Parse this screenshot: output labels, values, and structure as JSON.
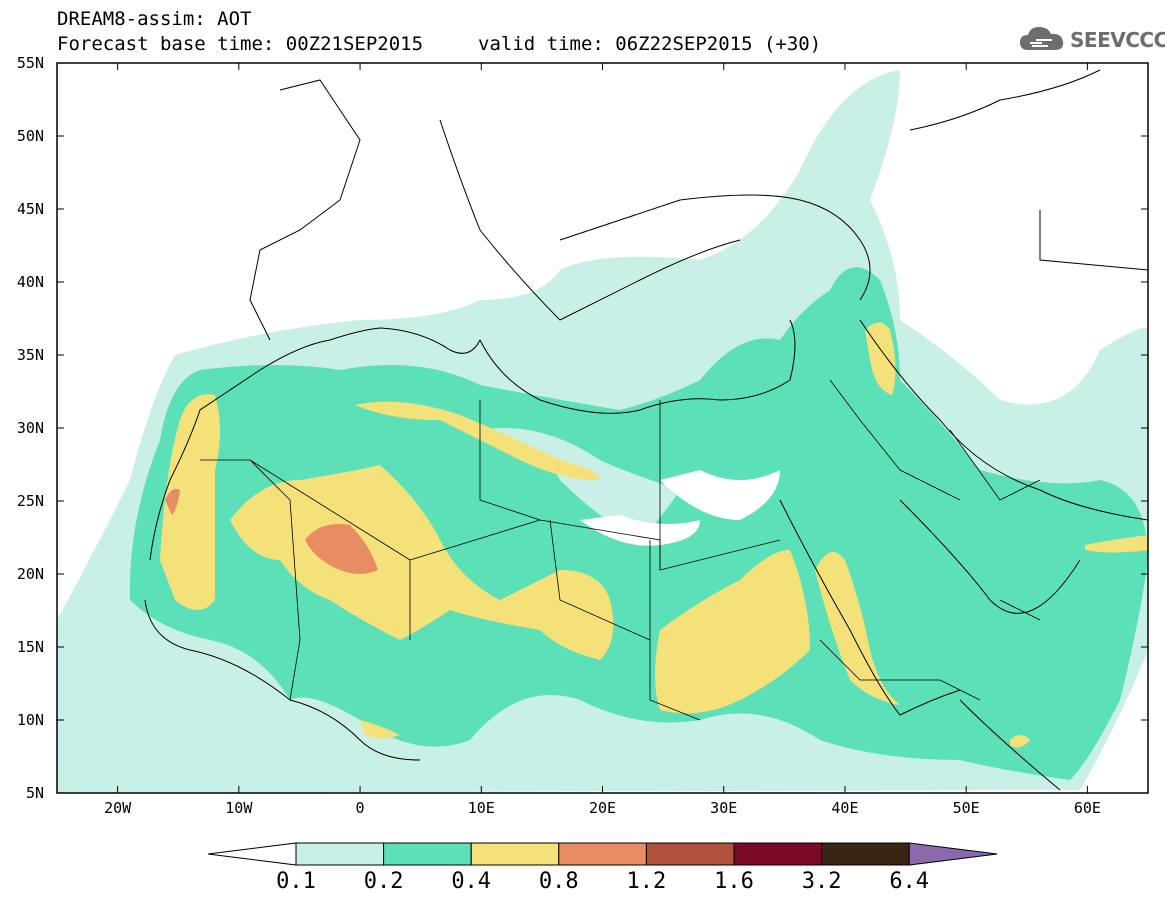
{
  "header": {
    "title_line1": "DREAM8-assim: AOT",
    "base_time": "Forecast base time: 00Z21SEP2015",
    "valid_time": "valid time: 06Z22SEP2015 (+30)",
    "logo_text": "SEEVCCC",
    "logo_icon": "cloud-icon"
  },
  "map": {
    "lat_ticks": [
      "55N",
      "50N",
      "45N",
      "40N",
      "35N",
      "30N",
      "25N",
      "20N",
      "15N",
      "10N",
      "5N"
    ],
    "lon_ticks": [
      "20W",
      "10W",
      "0",
      "10E",
      "20E",
      "30E",
      "40E",
      "50E",
      "60E"
    ],
    "lon_range": [
      -25,
      65
    ],
    "lat_range": [
      5,
      55
    ]
  },
  "colorbar": {
    "labels": [
      "0.1",
      "0.2",
      "0.4",
      "0.8",
      "1.2",
      "1.6",
      "3.2",
      "6.4"
    ],
    "colors": [
      "#ffffff",
      "#c8f0e6",
      "#5ce0b8",
      "#f5e17a",
      "#e88c64",
      "#b0523c",
      "#7a0a28",
      "#3c2414",
      "#8a6aaa"
    ]
  }
}
